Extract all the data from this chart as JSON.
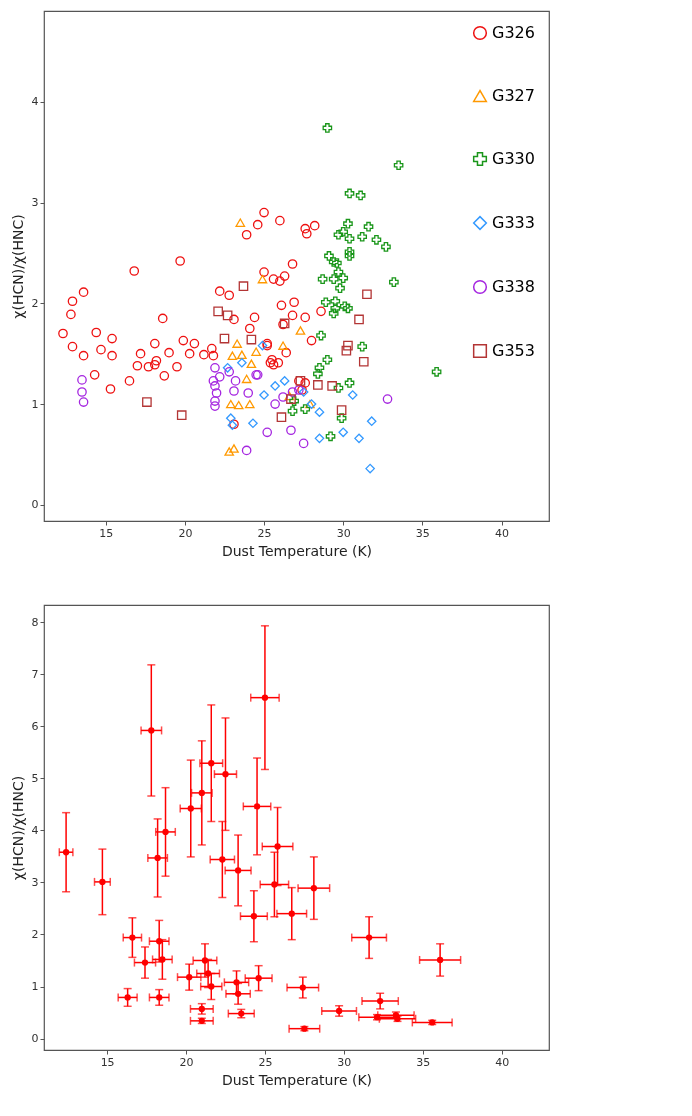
{
  "chart_data": [
    {
      "type": "scatter",
      "xlabel": "Dust Temperature (K)",
      "ylabel": "χ(HCN)/χ(HNC)",
      "xlim": [
        11.1,
        43
      ],
      "ylim": [
        -0.16,
        4.9
      ],
      "xticks": [
        15,
        20,
        25,
        30,
        35,
        40
      ],
      "yticks": [
        0,
        1,
        2,
        3,
        4
      ],
      "grid": false,
      "legend": "right",
      "series": [
        {
          "name": "G326",
          "color": "#ee1111",
          "marker": "circle",
          "x": [
            12.3,
            12.8,
            12.9,
            13.6,
            12.9,
            13.6,
            14.4,
            14.3,
            14.7,
            15.4,
            15.4,
            15.3,
            16.5,
            16.8,
            17.2,
            17.0,
            17.7,
            18.1,
            18.2,
            18.1,
            18.6,
            18.7,
            19.0,
            19.5,
            19.7,
            19.9,
            20.3,
            20.6,
            21.2,
            21.7,
            21.8,
            22.2,
            22.8,
            23.1,
            23.9,
            24.6,
            25.0,
            24.4,
            24.1,
            25.0,
            23.1,
            26.0,
            27.6,
            28.2,
            27.7,
            25.6,
            26.0,
            26.3,
            26.8,
            26.1,
            26.9,
            26.8,
            27.6,
            28.6,
            26.2,
            28.0,
            26.4,
            25.2,
            25.5,
            25.6,
            25.9,
            27.2,
            27.6,
            27.4,
            25.2,
            25.4
          ],
          "values": [
            1.7,
            1.89,
            2.02,
            2.11,
            1.57,
            1.48,
            1.71,
            1.29,
            1.54,
            1.65,
            1.48,
            1.15,
            1.23,
            2.32,
            1.5,
            1.38,
            1.37,
            1.6,
            1.43,
            1.39,
            1.85,
            1.28,
            1.51,
            1.37,
            2.42,
            1.63,
            1.5,
            1.6,
            1.49,
            1.55,
            1.48,
            2.12,
            2.08,
            1.84,
            2.68,
            2.78,
            2.9,
            1.86,
            1.75,
            2.31,
            0.8,
            2.82,
            2.74,
            2.77,
            2.69,
            2.24,
            2.22,
            2.27,
            2.39,
            1.98,
            2.01,
            1.88,
            1.86,
            1.92,
            1.79,
            1.63,
            1.51,
            1.58,
            1.44,
            1.39,
            1.41,
            1.23,
            1.21,
            1.14,
            1.6,
            1.41
          ]
        },
        {
          "name": "G327",
          "color": "#ff9900",
          "marker": "triangle",
          "x": [
            23.5,
            24.9,
            23.3,
            23.6,
            23.0,
            23.9,
            22.9,
            23.4,
            24.1,
            22.8,
            23.1,
            24.5,
            27.3,
            26.2,
            27.9,
            26.6,
            24.2
          ],
          "values": [
            2.8,
            2.24,
            1.6,
            1.49,
            1.48,
            1.25,
            1.0,
            0.99,
            1.0,
            0.53,
            0.56,
            1.52,
            1.73,
            1.58,
            1.0,
            1.08,
            1.4
          ]
        },
        {
          "name": "G330",
          "color": "#1a961a",
          "marker": "cross",
          "x": [
            29.0,
            33.5,
            30.4,
            31.1,
            30.3,
            31.6,
            29.7,
            30.0,
            31.2,
            30.4,
            32.1,
            32.7,
            30.4,
            30.4,
            29.1,
            29.4,
            29.6,
            29.7,
            28.7,
            29.4,
            30.0,
            33.2,
            29.8,
            28.9,
            29.5,
            29.4,
            29.5,
            30.1,
            30.3,
            28.6,
            31.2,
            29.0,
            28.5,
            28.4,
            35.9,
            30.4,
            29.7,
            27.6,
            26.8,
            29.9,
            29.2,
            26.9
          ],
          "values": [
            3.74,
            3.37,
            3.09,
            3.07,
            2.79,
            2.76,
            2.68,
            2.71,
            2.66,
            2.64,
            2.63,
            2.56,
            2.51,
            2.47,
            2.47,
            2.41,
            2.4,
            2.31,
            2.24,
            2.24,
            2.25,
            2.21,
            2.15,
            2.01,
            2.02,
            1.9,
            1.95,
            1.97,
            1.95,
            1.68,
            1.57,
            1.44,
            1.36,
            1.3,
            1.32,
            1.21,
            1.16,
            0.95,
            0.93,
            0.86,
            0.68,
            1.03
          ]
        },
        {
          "name": "G333",
          "color": "#3399ff",
          "marker": "diamond",
          "x": [
            31.7,
            31.8,
            30.6,
            31.0,
            30.0,
            28.5,
            28.5,
            28.0,
            24.3,
            22.9,
            23.0,
            26.3,
            25.0,
            25.7,
            24.9,
            23.6,
            27.5,
            22.7
          ],
          "values": [
            0.36,
            0.83,
            1.09,
            0.66,
            0.72,
            0.66,
            0.92,
            1.0,
            0.81,
            0.86,
            0.79,
            1.23,
            1.09,
            1.18,
            1.58,
            1.41,
            1.12,
            1.36
          ]
        },
        {
          "name": "G338",
          "color": "#a526e0",
          "marker": "circle",
          "x": [
            13.5,
            13.5,
            13.6,
            21.9,
            21.8,
            21.9,
            22.0,
            21.9,
            21.9,
            22.2,
            22.8,
            23.2,
            23.1,
            23.9,
            24.5,
            24.0,
            25.2,
            26.7,
            27.5,
            32.8,
            24.6,
            25.7,
            26.2,
            26.8,
            27.2
          ],
          "values": [
            1.24,
            1.12,
            1.02,
            1.36,
            1.23,
            1.18,
            1.11,
            1.03,
            0.98,
            1.27,
            1.32,
            1.23,
            1.13,
            0.54,
            1.29,
            1.11,
            0.72,
            0.74,
            0.61,
            1.05,
            1.29,
            1.0,
            1.07,
            1.12,
            1.14
          ]
        },
        {
          "name": "G353",
          "color": "#b33535",
          "marker": "square",
          "x": [
            17.6,
            19.8,
            23.7,
            22.1,
            22.7,
            22.5,
            24.2,
            31.5,
            31.0,
            26.3,
            30.3,
            30.2,
            31.3,
            28.4,
            29.3,
            29.9,
            26.1,
            26.7,
            27.3
          ],
          "values": [
            1.02,
            0.89,
            2.17,
            1.92,
            1.88,
            1.65,
            1.64,
            2.09,
            1.84,
            1.8,
            1.58,
            1.53,
            1.42,
            1.19,
            1.18,
            0.94,
            0.87,
            1.05,
            1.23
          ]
        }
      ]
    },
    {
      "type": "scatter",
      "xlabel": "Dust Temperature (K)",
      "ylabel": "χ(HCN)/χ(HNC)",
      "xlim": [
        11.0,
        43
      ],
      "ylim": [
        -0.22,
        8.33
      ],
      "xticks": [
        15,
        20,
        25,
        30,
        35,
        40
      ],
      "yticks": [
        0,
        1,
        2,
        3,
        4,
        5,
        6,
        7,
        8
      ],
      "grid": false,
      "marker": "circle",
      "series": [
        {
          "color": "#ff0000",
          "x": [
            12.4,
            14.7,
            17.8,
            16.6,
            17.4,
            16.3,
            18.2,
            18.7,
            18.3,
            18.5,
            18.3,
            20.3,
            21.0,
            21.6,
            22.5,
            22.3,
            23.3,
            24.3,
            24.5,
            20.2,
            21.2,
            21.4,
            21.6,
            21.0,
            21.0,
            23.2,
            23.3,
            23.5,
            24.6,
            25.0,
            25.8,
            25.6,
            26.7,
            28.1,
            27.4,
            27.5,
            29.7,
            31.6,
            32.3,
            32.1,
            33.3,
            33.4,
            35.6,
            36.1
          ],
          "values": [
            3.58,
            3.01,
            5.92,
            1.94,
            1.46,
            0.79,
            3.47,
            3.97,
            1.87,
            1.52,
            0.79,
            4.42,
            4.72,
            5.29,
            5.08,
            3.44,
            3.23,
            2.35,
            4.46,
            1.18,
            1.5,
            1.25,
            1.0,
            0.57,
            0.34,
            1.08,
            0.86,
            0.48,
            1.16,
            6.55,
            3.69,
            2.96,
            2.4,
            2.89,
            0.98,
            0.19,
            0.53,
            1.94,
            0.72,
            0.41,
            0.45,
            0.38,
            0.31,
            1.51
          ],
          "errors": [
            0.76,
            0.63,
            1.26,
            0.38,
            0.3,
            0.17,
            0.75,
            0.85,
            0.4,
            0.38,
            0.15,
            0.93,
            1.0,
            1.12,
            1.08,
            0.73,
            0.68,
            0.49,
            0.93,
            0.25,
            0.32,
            0.27,
            0.25,
            0.1,
            0.05,
            0.22,
            0.2,
            0.08,
            0.24,
            1.38,
            0.75,
            0.62,
            0.5,
            0.6,
            0.2,
            0.04,
            0.1,
            0.4,
            0.15,
            0.05,
            0.06,
            0.05,
            0.04,
            0.31
          ],
          "xerrors": [
            0.43,
            0.5,
            0.65,
            0.58,
            0.67,
            0.6,
            0.62,
            0.62,
            0.62,
            0.62,
            0.62,
            0.67,
            0.65,
            0.72,
            0.7,
            0.77,
            0.82,
            0.85,
            0.87,
            0.74,
            0.75,
            0.72,
            0.67,
            0.72,
            0.72,
            0.77,
            0.77,
            0.82,
            0.85,
            0.9,
            0.97,
            0.9,
            0.94,
            1.0,
            1.0,
            0.97,
            1.1,
            1.1,
            1.15,
            1.15,
            1.15,
            1.15,
            1.26,
            1.3
          ]
        }
      ]
    }
  ]
}
